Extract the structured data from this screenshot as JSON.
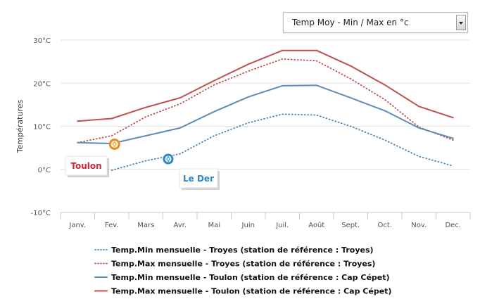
{
  "selector": {
    "value": "Temp Moy - Min / Max en °c"
  },
  "chart_data": {
    "type": "line",
    "title": "",
    "ylabel": "Températures",
    "xlabel": "",
    "ylim": [
      -10,
      30
    ],
    "y_ticks": [
      -10,
      0,
      10,
      20,
      30
    ],
    "y_tick_labels": [
      "-10°C",
      "0°C",
      "10°C",
      "20°C",
      "30°C"
    ],
    "grid": "horizontal",
    "legend_placement": "bottom",
    "categories": [
      "Janv.",
      "Fev.",
      "Mars",
      "Avr.",
      "Mai",
      "Juin",
      "Juil.",
      "Août",
      "Sept.",
      "Oct.",
      "Nov.",
      "Dec."
    ],
    "series": [
      {
        "name": "Temp.Min mensuelle - Troyes (station de référence : Troyes)",
        "color": "#4a86b5",
        "dash": "dotted",
        "values": [
          null,
          -0.2,
          2.0,
          3.6,
          7.8,
          10.8,
          12.8,
          12.6,
          10.0,
          6.8,
          3.0,
          0.8
        ]
      },
      {
        "name": "Temp.Max mensuelle - Troyes (station de référence : Troyes)",
        "color": "#c0504d",
        "dash": "dotted",
        "values": [
          6.2,
          7.8,
          12.2,
          15.2,
          19.6,
          22.8,
          25.6,
          25.2,
          21.0,
          16.2,
          9.8,
          6.8
        ]
      },
      {
        "name": "Temp.Min mensuelle - Toulon (station de référence : Cap Cépet)",
        "color": "#5b8db8",
        "dash": "solid",
        "values": [
          6.2,
          6.0,
          7.8,
          9.6,
          13.4,
          16.8,
          19.4,
          19.5,
          16.6,
          13.6,
          9.6,
          7.2
        ]
      },
      {
        "name": "Temp.Max mensuelle - Toulon (station de référence : Cap Cépet)",
        "color": "#c0504d",
        "dash": "solid",
        "values": [
          11.2,
          11.8,
          14.4,
          16.6,
          20.6,
          24.4,
          27.6,
          27.6,
          24.0,
          19.6,
          14.6,
          12.0
        ]
      }
    ],
    "annotations": [
      {
        "label": "Toulon",
        "color": "#d0262f",
        "marker_color": "#ef8a17"
      },
      {
        "label": "Le Der",
        "color": "#2a88c8",
        "marker_color": "#2a88c8"
      }
    ]
  }
}
